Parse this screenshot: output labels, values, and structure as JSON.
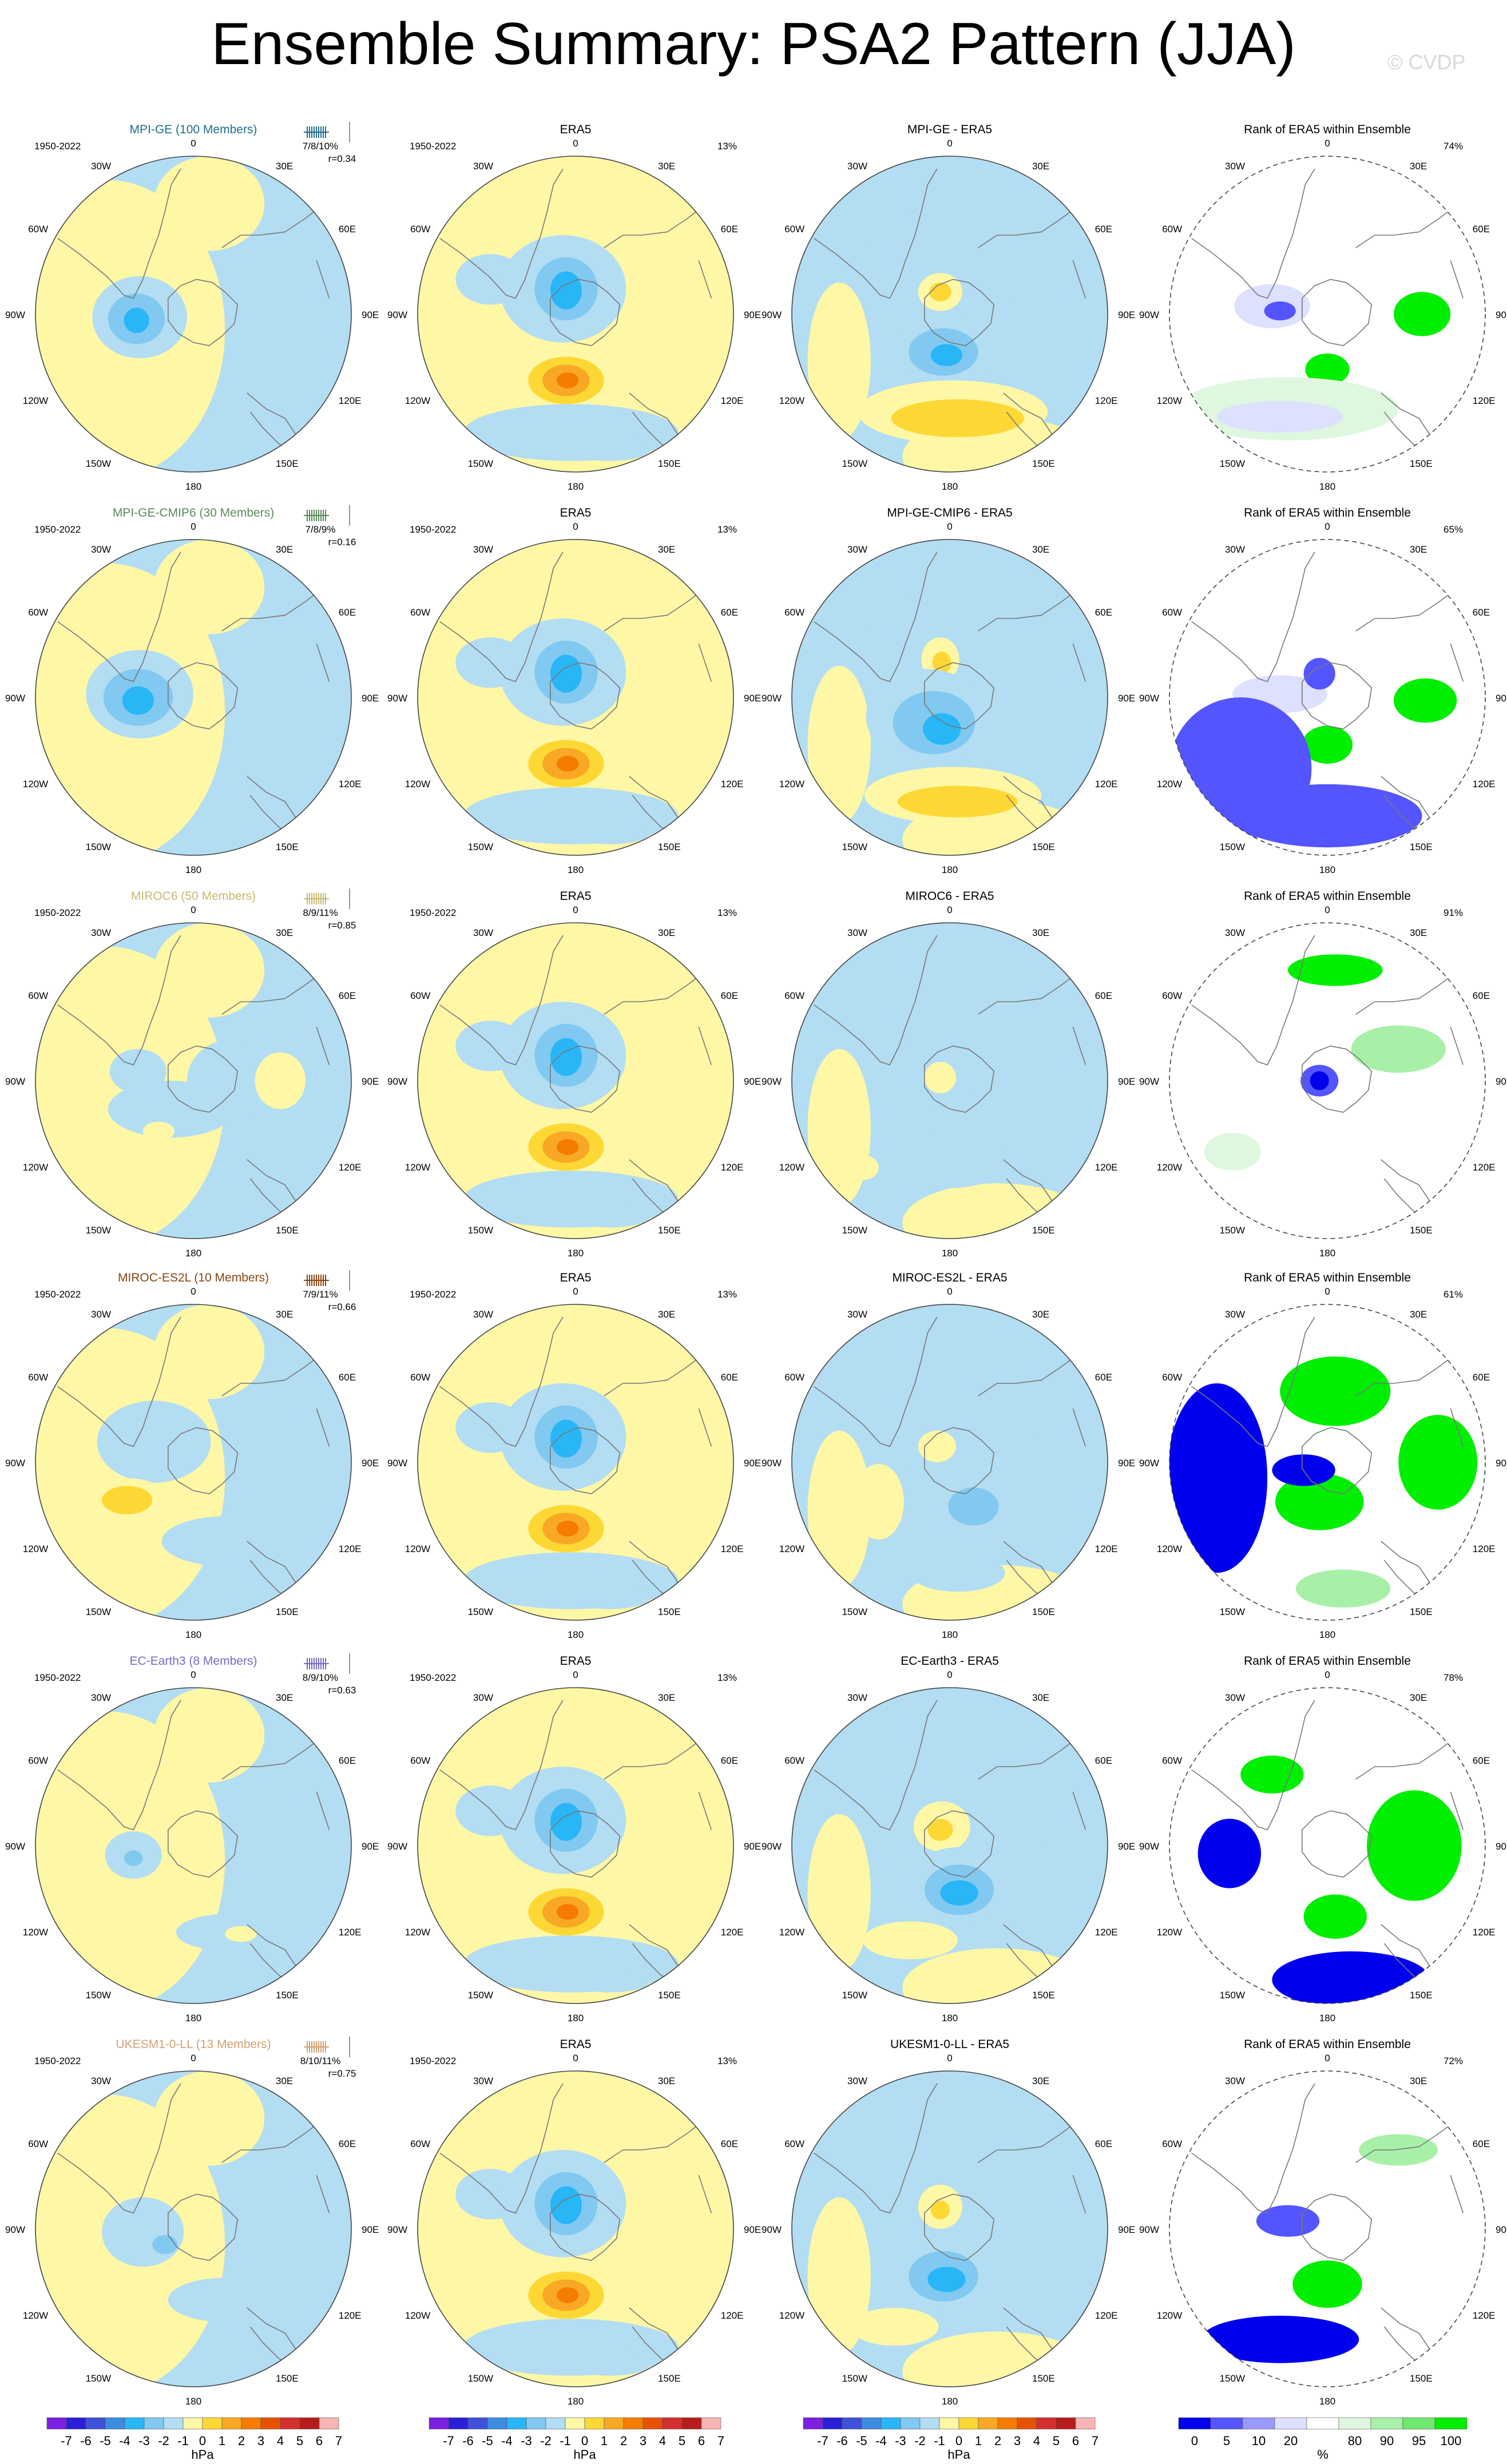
{
  "title": "Ensemble Summary: PSA2 Pattern (JJA)",
  "watermark": "© CVDP",
  "colors": {
    "positive": [
      "#fef7a6",
      "#fdd835",
      "#f9a825",
      "#f57c00",
      "#e65100",
      "#d32f2f",
      "#b71c1c",
      "#f8b4b4"
    ],
    "negative": [
      "#b3ddf2",
      "#81c9f0",
      "#29b6f6",
      "#3d8ce0",
      "#3f51d9",
      "#2a1fd6",
      "#7b1fe0"
    ],
    "rank": [
      "#0000ee",
      "#5555ff",
      "#9999ff",
      "#dde0ff",
      "#ffffff",
      "#dff7df",
      "#a8f0a8",
      "#6fe86f",
      "#00ee00"
    ],
    "coast": "#777777",
    "rim": "#444444"
  },
  "row_meta": {
    "period": "1950-2022",
    "obs_title": "ERA5",
    "obs_pct": "13%",
    "rank_title": "Rank of ERA5 within Ensemble"
  },
  "rows": [
    {
      "model": "MPI-GE (100 Members)",
      "model_color": "#1f6e8c",
      "stats": "7/8/10%",
      "corr": "r=0.34",
      "diff": "MPI-GE - ERA5",
      "rank_pct": "74%"
    },
    {
      "model": "MPI-GE-CMIP6 (30 Members)",
      "model_color": "#5a8a5a",
      "stats": "7/8/9%",
      "corr": "r=0.16",
      "diff": "MPI-GE-CMIP6 - ERA5",
      "rank_pct": "65%"
    },
    {
      "model": "MIROC6 (50 Members)",
      "model_color": "#c9b873",
      "stats": "8/9/11%",
      "corr": "r=0.85",
      "diff": "MIROC6 - ERA5",
      "rank_pct": "91%"
    },
    {
      "model": "MIROC-ES2L (10 Members)",
      "model_color": "#8b4513",
      "stats": "7/9/11%",
      "corr": "r=0.66",
      "diff": "MIROC-ES2L - ERA5",
      "rank_pct": "61%"
    },
    {
      "model": "EC-Earth3 (8 Members)",
      "model_color": "#7b68c8",
      "stats": "8/9/10%",
      "corr": "r=0.63",
      "diff": "EC-Earth3 - ERA5",
      "rank_pct": "78%"
    },
    {
      "model": "UKESM1-0-LL (13 Members)",
      "model_color": "#d2a074",
      "stats": "8/10/11%",
      "corr": "r=0.75",
      "diff": "UKESM1-0-LL - ERA5",
      "rank_pct": "72%"
    }
  ],
  "map_labels": [
    "0",
    "30E",
    "60E",
    "90E",
    "120E",
    "150E",
    "180",
    "150W",
    "120W",
    "90W",
    "60W",
    "30W"
  ],
  "colorbar": {
    "hpa_ticks": [
      "-7",
      "-6",
      "-5",
      "-4",
      "-3",
      "-2",
      "-1",
      "0",
      "1",
      "2",
      "3",
      "4",
      "5",
      "6",
      "7"
    ],
    "hpa_units": "hPa",
    "rank_ticks": [
      "0",
      "5",
      "10",
      "20",
      "80",
      "90",
      "95",
      "100"
    ],
    "rank_units": "%"
  },
  "chart_data": {
    "type": "heatmap",
    "title": "Ensemble Summary: PSA2 Pattern (JJA)",
    "layout": "6 rows x 4 columns of south polar stereographic maps",
    "columns": [
      "model ensemble mean pattern",
      "ERA5",
      "model minus ERA5",
      "Rank of ERA5 within Ensemble"
    ],
    "units": {
      "pattern": "hPa",
      "rank": "%"
    },
    "contour_levels_hPa": [
      -7,
      -6,
      -5,
      -4,
      -3,
      -2,
      -1,
      0,
      1,
      2,
      3,
      4,
      5,
      6,
      7
    ],
    "rank_levels_pct": [
      0,
      5,
      10,
      20,
      80,
      90,
      95,
      100
    ],
    "period": "1950-2022",
    "obs_explained_variance_pct": 13,
    "models": [
      {
        "name": "MPI-GE",
        "members": 100,
        "explained_variance_pct": [
          7,
          8,
          10
        ],
        "pattern_corr": 0.34,
        "rank_pct": 74
      },
      {
        "name": "MPI-GE-CMIP6",
        "members": 30,
        "explained_variance_pct": [
          7,
          8,
          9
        ],
        "pattern_corr": 0.16,
        "rank_pct": 65
      },
      {
        "name": "MIROC6",
        "members": 50,
        "explained_variance_pct": [
          8,
          9,
          11
        ],
        "pattern_corr": 0.85,
        "rank_pct": 91
      },
      {
        "name": "MIROC-ES2L",
        "members": 10,
        "explained_variance_pct": [
          7,
          9,
          11
        ],
        "pattern_corr": 0.66,
        "rank_pct": 61
      },
      {
        "name": "EC-Earth3",
        "members": 8,
        "explained_variance_pct": [
          8,
          9,
          10
        ],
        "pattern_corr": 0.63,
        "rank_pct": 78
      },
      {
        "name": "UKESM1-0-LL",
        "members": 13,
        "explained_variance_pct": [
          8,
          10,
          11
        ],
        "pattern_corr": 0.75,
        "rank_pct": 72
      }
    ]
  }
}
